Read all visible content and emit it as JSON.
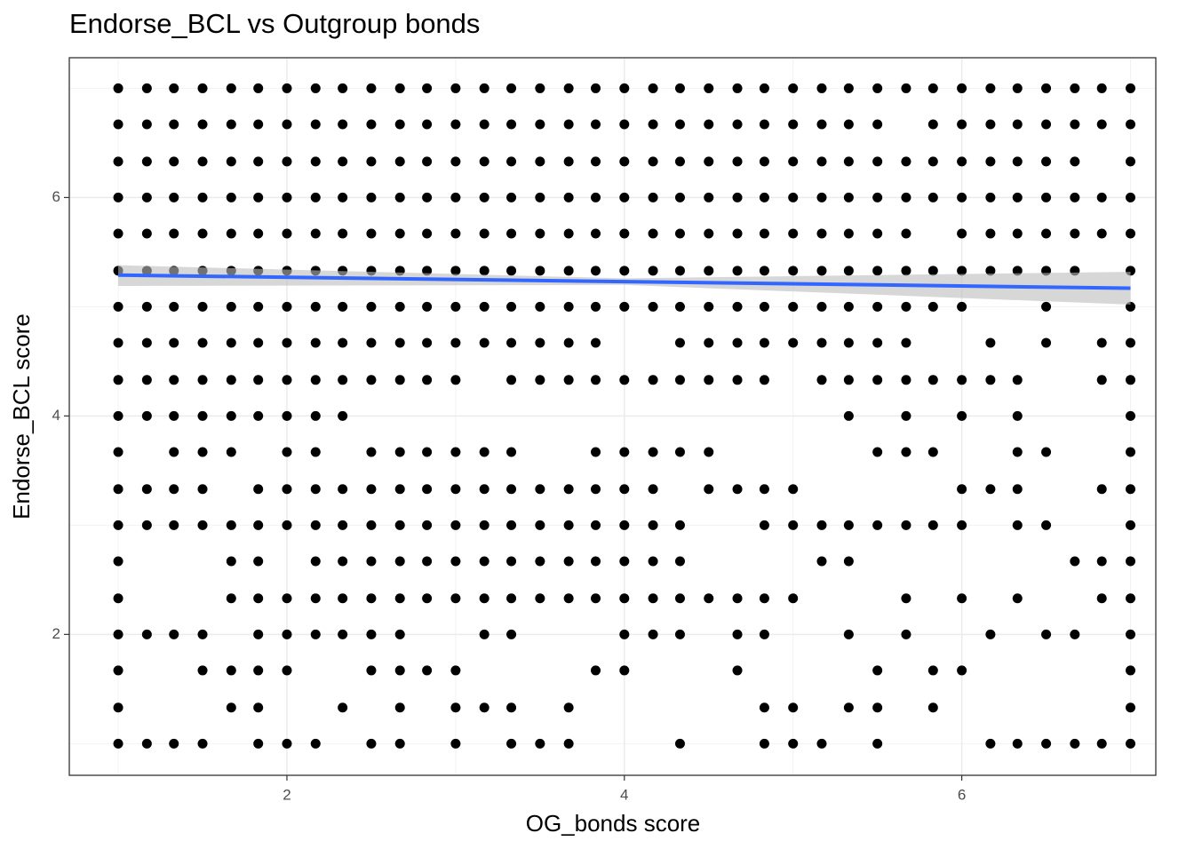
{
  "chart_data": {
    "type": "scatter",
    "title": "Endorse_BCL vs Outgroup bonds",
    "x_label": "OG_bonds score",
    "y_label": "Endorse_BCL score",
    "xlim": [
      0.71,
      7.15
    ],
    "ylim": [
      0.71,
      7.28
    ],
    "xticks": [
      2,
      4,
      6
    ],
    "yticks": [
      2,
      4,
      6
    ],
    "x_minor_grid": [
      1,
      3,
      5,
      7
    ],
    "y_minor_grid": [
      1,
      3,
      5,
      7
    ],
    "grid": true,
    "color": "#000000",
    "x": [
      1,
      1.17,
      1.33,
      1.5,
      1.67,
      1.83,
      2,
      2.17,
      2.33,
      2.5,
      2.67,
      2.83,
      3,
      3.17,
      3.33,
      3.5,
      3.67,
      3.83,
      4,
      4.17,
      4.33,
      4.5,
      4.67,
      4.83,
      5,
      5.17,
      5.33,
      5.5,
      5.67,
      5.83,
      6,
      6.17,
      6.33,
      6.5,
      6.67,
      6.83,
      7,
      1,
      1.17,
      1.33,
      1.5,
      1.67,
      1.83,
      2,
      2.17,
      2.33,
      2.5,
      2.67,
      2.83,
      3,
      3.17,
      3.33,
      3.5,
      3.67,
      3.83,
      4,
      4.17,
      4.33,
      4.5,
      4.67,
      4.83,
      5,
      5.17,
      5.33,
      5.5,
      5.83,
      6,
      6.17,
      6.33,
      6.5,
      6.67,
      6.83,
      7,
      1,
      1.17,
      1.33,
      1.5,
      1.67,
      1.83,
      2,
      2.17,
      2.33,
      2.5,
      2.67,
      2.83,
      3,
      3.17,
      3.33,
      3.5,
      3.67,
      3.83,
      4,
      4.17,
      4.33,
      4.5,
      4.67,
      4.83,
      5,
      5.17,
      5.33,
      5.5,
      5.67,
      5.83,
      6,
      6.17,
      6.33,
      6.5,
      6.67,
      7,
      1,
      1.17,
      1.33,
      1.5,
      1.67,
      1.83,
      2,
      2.17,
      2.33,
      2.5,
      2.67,
      2.83,
      3,
      3.17,
      3.33,
      3.5,
      3.67,
      3.83,
      4,
      4.17,
      4.33,
      4.5,
      4.67,
      4.83,
      5,
      5.17,
      5.33,
      5.5,
      5.67,
      5.83,
      6,
      6.17,
      6.33,
      6.5,
      6.67,
      6.83,
      7,
      1,
      1.17,
      1.33,
      1.5,
      1.67,
      1.83,
      2,
      2.17,
      2.33,
      2.5,
      2.67,
      2.83,
      3,
      3.17,
      3.33,
      3.5,
      3.67,
      3.83,
      4,
      4.17,
      4.33,
      4.5,
      4.67,
      4.83,
      5,
      5.17,
      5.33,
      5.5,
      5.67,
      6,
      6.17,
      6.33,
      6.5,
      6.67,
      6.83,
      7,
      1,
      1.17,
      1.33,
      1.5,
      1.67,
      1.83,
      2,
      2.17,
      2.33,
      2.5,
      2.67,
      2.83,
      3,
      3.17,
      3.33,
      3.5,
      3.67,
      3.83,
      4,
      4.17,
      4.33,
      4.5,
      4.67,
      4.83,
      5,
      5.17,
      5.33,
      5.5,
      5.67,
      5.83,
      6,
      6.17,
      6.33,
      6.5,
      6.67,
      7,
      1,
      1.17,
      1.33,
      1.5,
      1.67,
      1.83,
      2,
      2.17,
      2.33,
      2.5,
      2.67,
      2.83,
      3,
      3.17,
      3.33,
      3.5,
      3.67,
      3.83,
      4,
      4.17,
      4.33,
      4.5,
      4.67,
      4.83,
      5,
      5.17,
      5.33,
      5.5,
      5.67,
      5.83,
      6,
      6.5,
      7,
      1,
      1.17,
      1.33,
      1.5,
      1.67,
      1.83,
      2,
      2.17,
      2.33,
      2.5,
      2.67,
      2.83,
      3,
      3.17,
      3.33,
      3.5,
      3.67,
      3.83,
      4.33,
      4.5,
      4.67,
      4.83,
      5,
      5.17,
      5.33,
      5.5,
      5.67,
      6.17,
      6.5,
      6.83,
      7,
      1,
      1.17,
      1.33,
      1.5,
      1.67,
      1.83,
      2,
      2.17,
      2.33,
      2.5,
      2.67,
      2.83,
      3,
      3.33,
      3.5,
      3.67,
      3.83,
      4,
      4.17,
      4.33,
      4.5,
      4.67,
      4.83,
      5.17,
      5.33,
      5.5,
      5.67,
      5.83,
      6,
      6.17,
      6.33,
      6.83,
      7,
      1,
      1.17,
      1.33,
      1.5,
      1.67,
      1.83,
      2,
      2.17,
      2.33,
      5.33,
      5.67,
      6,
      6.33,
      7,
      1,
      1.33,
      1.5,
      1.67,
      2,
      2.17,
      2.5,
      2.67,
      2.83,
      3,
      3.17,
      3.33,
      3.83,
      4,
      4.17,
      4.33,
      4.5,
      5.5,
      5.67,
      5.83,
      6.33,
      6.5,
      7,
      1,
      1.17,
      1.33,
      1.5,
      1.83,
      2,
      2.17,
      2.33,
      2.5,
      2.67,
      2.83,
      3,
      3.17,
      3.33,
      3.5,
      3.67,
      3.83,
      4,
      4.17,
      4.5,
      4.67,
      4.83,
      5,
      6,
      6.17,
      6.33,
      6.83,
      7,
      1,
      1.17,
      1.33,
      1.5,
      1.67,
      1.83,
      2,
      2.17,
      2.33,
      2.5,
      2.67,
      2.83,
      3,
      3.17,
      3.33,
      3.5,
      3.67,
      3.83,
      4,
      4.17,
      4.33,
      4.83,
      5,
      5.17,
      5.33,
      5.5,
      5.67,
      5.83,
      6,
      6.33,
      6.5,
      7,
      1,
      1.67,
      1.83,
      2.17,
      2.33,
      2.5,
      2.67,
      2.83,
      3,
      3.17,
      3.33,
      3.5,
      3.67,
      3.83,
      4,
      4.17,
      4.33,
      5.17,
      5.33,
      6.67,
      6.83,
      7,
      1,
      1.67,
      1.83,
      2,
      2.17,
      2.33,
      2.5,
      2.67,
      2.83,
      3,
      3.17,
      3.33,
      3.5,
      3.67,
      3.83,
      4,
      4.17,
      4.33,
      4.5,
      4.67,
      4.83,
      5,
      5.67,
      6,
      6.33,
      6.83,
      7,
      1,
      1.17,
      1.33,
      1.5,
      1.83,
      2,
      2.17,
      2.33,
      2.5,
      2.67,
      3.17,
      3.33,
      4,
      4.17,
      4.33,
      4.67,
      4.83,
      5.33,
      5.67,
      6.17,
      6.5,
      6.67,
      7,
      1,
      1.5,
      1.67,
      1.83,
      2,
      2.5,
      2.67,
      2.83,
      3,
      3.83,
      4,
      4.67,
      5.5,
      5.83,
      6,
      7,
      1,
      1.67,
      1.83,
      2.33,
      2.67,
      3,
      3.17,
      3.33,
      3.67,
      4.83,
      5,
      5.33,
      5.5,
      5.83,
      7,
      1,
      1.17,
      1.33,
      1.5,
      1.83,
      2,
      2.17,
      2.5,
      2.67,
      3,
      3.33,
      3.5,
      3.67,
      4.33,
      4.83,
      5,
      5.17,
      5.5,
      6.17,
      6.33,
      6.5,
      6.67,
      6.83,
      7
    ],
    "y": [
      7,
      7,
      7,
      7,
      7,
      7,
      7,
      7,
      7,
      7,
      7,
      7,
      7,
      7,
      7,
      7,
      7,
      7,
      7,
      7,
      7,
      7,
      7,
      7,
      7,
      7,
      7,
      7,
      7,
      7,
      7,
      7,
      7,
      7,
      7,
      7,
      7,
      6.67,
      6.67,
      6.67,
      6.67,
      6.67,
      6.67,
      6.67,
      6.67,
      6.67,
      6.67,
      6.67,
      6.67,
      6.67,
      6.67,
      6.67,
      6.67,
      6.67,
      6.67,
      6.67,
      6.67,
      6.67,
      6.67,
      6.67,
      6.67,
      6.67,
      6.67,
      6.67,
      6.67,
      6.67,
      6.67,
      6.67,
      6.67,
      6.67,
      6.67,
      6.67,
      6.67,
      6.33,
      6.33,
      6.33,
      6.33,
      6.33,
      6.33,
      6.33,
      6.33,
      6.33,
      6.33,
      6.33,
      6.33,
      6.33,
      6.33,
      6.33,
      6.33,
      6.33,
      6.33,
      6.33,
      6.33,
      6.33,
      6.33,
      6.33,
      6.33,
      6.33,
      6.33,
      6.33,
      6.33,
      6.33,
      6.33,
      6.33,
      6.33,
      6.33,
      6.33,
      6.33,
      6.33,
      6,
      6,
      6,
      6,
      6,
      6,
      6,
      6,
      6,
      6,
      6,
      6,
      6,
      6,
      6,
      6,
      6,
      6,
      6,
      6,
      6,
      6,
      6,
      6,
      6,
      6,
      6,
      6,
      6,
      6,
      6,
      6,
      6,
      6,
      6,
      6,
      6,
      5.67,
      5.67,
      5.67,
      5.67,
      5.67,
      5.67,
      5.67,
      5.67,
      5.67,
      5.67,
      5.67,
      5.67,
      5.67,
      5.67,
      5.67,
      5.67,
      5.67,
      5.67,
      5.67,
      5.67,
      5.67,
      5.67,
      5.67,
      5.67,
      5.67,
      5.67,
      5.67,
      5.67,
      5.67,
      5.67,
      5.67,
      5.67,
      5.67,
      5.67,
      5.67,
      5.67,
      5.33,
      5.33,
      5.33,
      5.33,
      5.33,
      5.33,
      5.33,
      5.33,
      5.33,
      5.33,
      5.33,
      5.33,
      5.33,
      5.33,
      5.33,
      5.33,
      5.33,
      5.33,
      5.33,
      5.33,
      5.33,
      5.33,
      5.33,
      5.33,
      5.33,
      5.33,
      5.33,
      5.33,
      5.33,
      5.33,
      5.33,
      5.33,
      5.33,
      5.33,
      5.33,
      5.33,
      5,
      5,
      5,
      5,
      5,
      5,
      5,
      5,
      5,
      5,
      5,
      5,
      5,
      5,
      5,
      5,
      5,
      5,
      5,
      5,
      5,
      5,
      5,
      5,
      5,
      5,
      5,
      5,
      5,
      5,
      5,
      5,
      5,
      4.67,
      4.67,
      4.67,
      4.67,
      4.67,
      4.67,
      4.67,
      4.67,
      4.67,
      4.67,
      4.67,
      4.67,
      4.67,
      4.67,
      4.67,
      4.67,
      4.67,
      4.67,
      4.67,
      4.67,
      4.67,
      4.67,
      4.67,
      4.67,
      4.67,
      4.67,
      4.67,
      4.67,
      4.67,
      4.67,
      4.67,
      4.33,
      4.33,
      4.33,
      4.33,
      4.33,
      4.33,
      4.33,
      4.33,
      4.33,
      4.33,
      4.33,
      4.33,
      4.33,
      4.33,
      4.33,
      4.33,
      4.33,
      4.33,
      4.33,
      4.33,
      4.33,
      4.33,
      4.33,
      4.33,
      4.33,
      4.33,
      4.33,
      4.33,
      4.33,
      4.33,
      4.33,
      4.33,
      4.33,
      4,
      4,
      4,
      4,
      4,
      4,
      4,
      4,
      4,
      4,
      4,
      4,
      4,
      4,
      3.67,
      3.67,
      3.67,
      3.67,
      3.67,
      3.67,
      3.67,
      3.67,
      3.67,
      3.67,
      3.67,
      3.67,
      3.67,
      3.67,
      3.67,
      3.67,
      3.67,
      3.67,
      3.67,
      3.67,
      3.67,
      3.67,
      3.67,
      3.33,
      3.33,
      3.33,
      3.33,
      3.33,
      3.33,
      3.33,
      3.33,
      3.33,
      3.33,
      3.33,
      3.33,
      3.33,
      3.33,
      3.33,
      3.33,
      3.33,
      3.33,
      3.33,
      3.33,
      3.33,
      3.33,
      3.33,
      3.33,
      3.33,
      3.33,
      3.33,
      3.33,
      3,
      3,
      3,
      3,
      3,
      3,
      3,
      3,
      3,
      3,
      3,
      3,
      3,
      3,
      3,
      3,
      3,
      3,
      3,
      3,
      3,
      3,
      3,
      3,
      3,
      3,
      3,
      3,
      3,
      3,
      3,
      3,
      2.67,
      2.67,
      2.67,
      2.67,
      2.67,
      2.67,
      2.67,
      2.67,
      2.67,
      2.67,
      2.67,
      2.67,
      2.67,
      2.67,
      2.67,
      2.67,
      2.67,
      2.67,
      2.67,
      2.67,
      2.67,
      2.67,
      2.33,
      2.33,
      2.33,
      2.33,
      2.33,
      2.33,
      2.33,
      2.33,
      2.33,
      2.33,
      2.33,
      2.33,
      2.33,
      2.33,
      2.33,
      2.33,
      2.33,
      2.33,
      2.33,
      2.33,
      2.33,
      2.33,
      2.33,
      2.33,
      2.33,
      2.33,
      2.33,
      2,
      2,
      2,
      2,
      2,
      2,
      2,
      2,
      2,
      2,
      2,
      2,
      2,
      2,
      2,
      2,
      2,
      2,
      2,
      2,
      2,
      2,
      2,
      1.67,
      1.67,
      1.67,
      1.67,
      1.67,
      1.67,
      1.67,
      1.67,
      1.67,
      1.67,
      1.67,
      1.67,
      1.67,
      1.67,
      1.67,
      1.67,
      1.33,
      1.33,
      1.33,
      1.33,
      1.33,
      1.33,
      1.33,
      1.33,
      1.33,
      1.33,
      1.33,
      1.33,
      1.33,
      1.33,
      1.33,
      1,
      1,
      1,
      1,
      1,
      1,
      1,
      1,
      1,
      1,
      1,
      1,
      1,
      1,
      1,
      1,
      1,
      1,
      1,
      1,
      1,
      1,
      1,
      1
    ],
    "fit": {
      "x": [
        1,
        4,
        7
      ],
      "y": [
        5.29,
        5.23,
        5.17
      ],
      "lower": [
        5.19,
        5.2,
        5.02
      ],
      "upper": [
        5.38,
        5.26,
        5.32
      ],
      "color": "#3366ff",
      "band_color": "#bdbdbd"
    }
  }
}
